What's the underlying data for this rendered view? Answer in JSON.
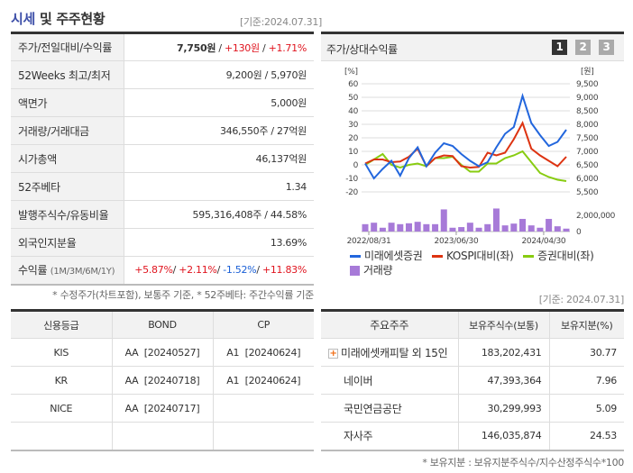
{
  "header": {
    "title_hl": "시세",
    "title_rest": " 및 주주현황",
    "basis": "[기준:2024.07.31]"
  },
  "info": {
    "price_label": "주가/전일대비/수익률",
    "price": "7,750원",
    "sep": " / ",
    "change": "+130원",
    "rate": "+1.71%",
    "rows": [
      {
        "k": "52Weeks 최고/최저",
        "v": "9,200원 / 5,970원"
      },
      {
        "k": "액면가",
        "v": "5,000원"
      },
      {
        "k": "거래량/거래대금",
        "v": "346,550주 / 27억원"
      },
      {
        "k": "시가총액",
        "v": "46,137억원"
      },
      {
        "k": "52주베타",
        "v": "1.34"
      },
      {
        "k": "발행주식수/유동비율",
        "v": "595,316,408주 / 44.58%"
      },
      {
        "k": "외국인지분율",
        "v": "13.69%"
      }
    ],
    "return_label": "수익률",
    "return_periods": "(1M/3M/6M/1Y)",
    "returns": [
      "+5.87%",
      "+2.11%",
      "-1.52%",
      "+11.83%"
    ],
    "note": "* 수정주가(차트포함), 보통주 기준, * 52주베타: 주간수익률 기준"
  },
  "chart_panel": {
    "title": "주가/상대수익률",
    "pages": [
      "1",
      "2",
      "3"
    ],
    "active_page": "1"
  },
  "chart_data": {
    "type": "line",
    "left_unit": "[%]",
    "right_unit": "[원]",
    "left_ticks": [
      60,
      50,
      40,
      30,
      20,
      10,
      0,
      -10,
      -20
    ],
    "right_ticks": [
      "9,500",
      "9,000",
      "8,500",
      "8,000",
      "7,500",
      "7,000",
      "6,500",
      "6,000",
      "5,500"
    ],
    "ylim": [
      -20,
      60
    ],
    "x_tick_labels": [
      "2022/08/31",
      "2023/06/30",
      "2024/04/30"
    ],
    "volume_tick_labels": [
      "2,000,000",
      "0"
    ],
    "volume_max": 2000000,
    "series": [
      {
        "name": "미래에셋증권",
        "color": "#2266dd",
        "values": [
          1,
          -10,
          -3,
          3,
          -8,
          5,
          13,
          -1,
          9,
          16,
          14,
          8,
          3,
          -1,
          2,
          13,
          23,
          28,
          51,
          31,
          22,
          14,
          17,
          26
        ]
      },
      {
        "name": "KOSPI대비(좌)",
        "color": "#dd3311",
        "values": [
          1,
          4,
          4,
          2,
          2.5,
          6,
          12,
          -1,
          5,
          7,
          6.5,
          -1,
          -2,
          -1.5,
          9,
          7,
          9,
          19,
          31,
          12,
          7,
          3,
          -1,
          6
        ]
      },
      {
        "name": "증권대비(좌)",
        "color": "#88cc11",
        "values": [
          0,
          4,
          8,
          0,
          -2,
          0,
          1,
          -1,
          5,
          5,
          6,
          0,
          -5,
          -5,
          1,
          1,
          5,
          7,
          10,
          2,
          -6,
          -9,
          -11,
          -12
        ]
      }
    ],
    "volume": {
      "name": "거래량",
      "color": "#a77ad8",
      "values": [
        910000,
        1090000,
        470000,
        1090000,
        910000,
        1020000,
        1200000,
        910000,
        910000,
        2730000,
        470000,
        550000,
        1090000,
        470000,
        910000,
        2840000,
        760000,
        980000,
        1560000,
        760000,
        470000,
        1560000,
        650000,
        360000
      ]
    },
    "grid": true,
    "legend": "bottom"
  },
  "credit": {
    "headers": [
      "신용등급",
      "BOND",
      "CP"
    ],
    "rows": [
      [
        "KIS",
        "AA  [20240527]",
        "A1  [20240624]"
      ],
      [
        "KR",
        "AA  [20240718]",
        "A1  [20240624]"
      ],
      [
        "NICE",
        "AA  [20240717]",
        ""
      ],
      [
        "",
        "",
        ""
      ]
    ]
  },
  "holders": {
    "basis": "[기준: 2024.07.31]",
    "headers": [
      "주요주주",
      "보유주식수(보통)",
      "보유지분(%)"
    ],
    "rows": [
      [
        "미래에셋캐피탈 외 15인",
        "183,202,431",
        "30.77"
      ],
      [
        "네이버",
        "47,393,364",
        "7.96"
      ],
      [
        "국민연금공단",
        "30,299,993",
        "5.09"
      ],
      [
        "자사주",
        "146,035,874",
        "24.53"
      ]
    ],
    "note": "* 보유지분 : 보유지분주식수/지수산정주식수*100"
  }
}
